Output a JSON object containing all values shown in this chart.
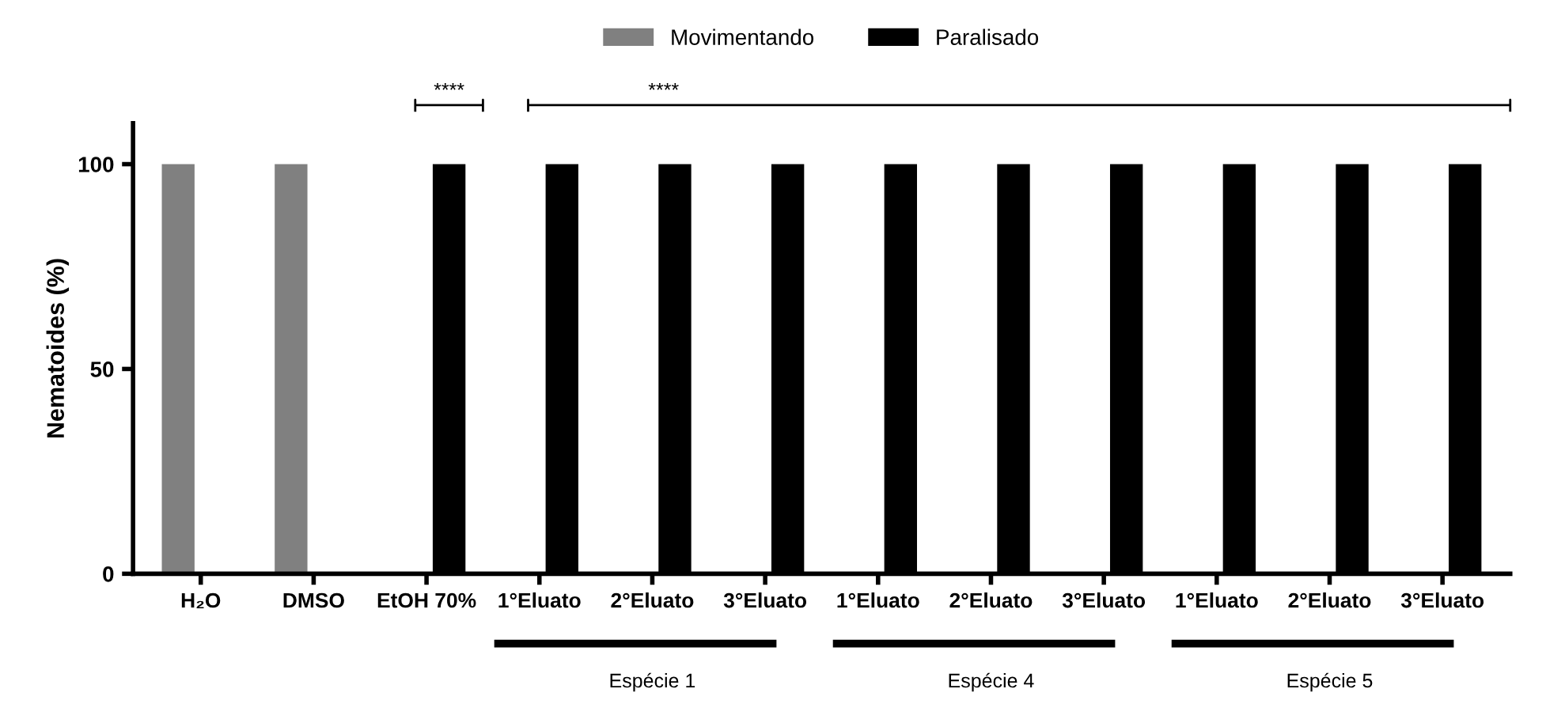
{
  "chart_data": {
    "type": "bar",
    "ylabel": "Nematoides (%)",
    "categories": [
      "H₂O",
      "DMSO",
      "EtOH 70%",
      "1°Eluato",
      "2°Eluato",
      "3°Eluato",
      "1°Eluato",
      "2°Eluato",
      "3°Eluato",
      "1°Eluato",
      "2°Eluato",
      "3°Eluato"
    ],
    "series": [
      {
        "name": "Movimentando",
        "color": "#808080",
        "values": [
          100,
          100,
          0,
          0,
          0,
          0,
          0,
          0,
          0,
          0,
          0,
          0
        ]
      },
      {
        "name": "Paralisado",
        "color": "#000000",
        "values": [
          0,
          0,
          100,
          100,
          100,
          100,
          100,
          100,
          100,
          100,
          100,
          100
        ]
      }
    ],
    "ylim": [
      0,
      110
    ],
    "yticks": [
      0,
      50,
      100
    ],
    "annotations": [
      "****",
      "****",
      "Espécie 1",
      "Espécie 4",
      "Espécie 5"
    ],
    "legend": "top",
    "grid": false
  }
}
